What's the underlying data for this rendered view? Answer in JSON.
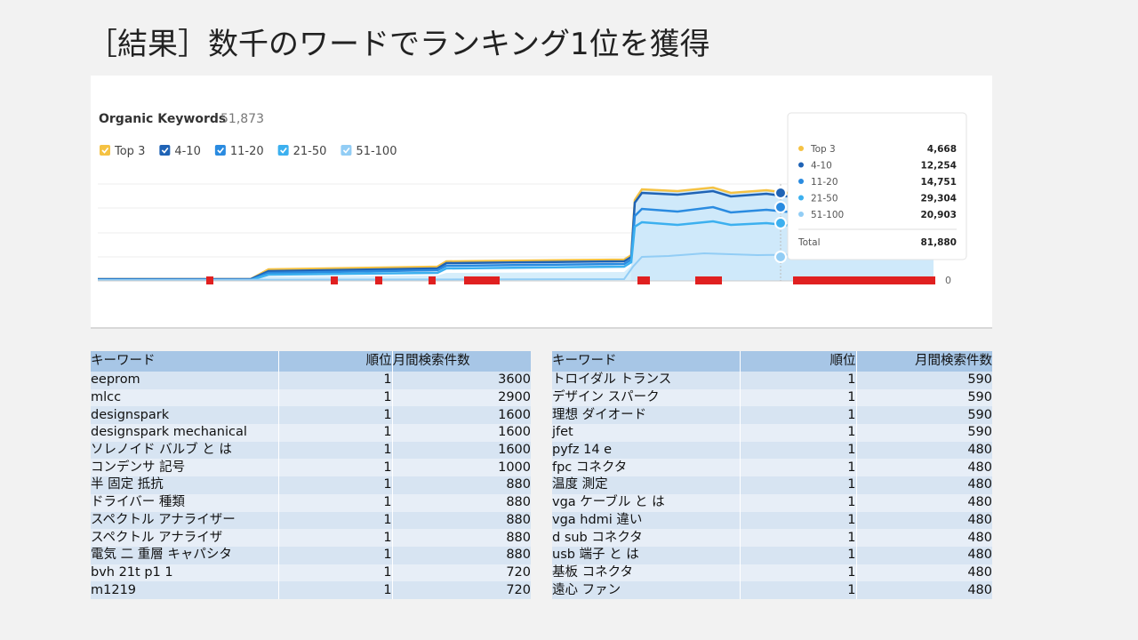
{
  "title": "［結果］数千のワードでランキング1位を獲得",
  "chart": {
    "title": "Organic Keywords",
    "count": "51,873",
    "legend": [
      "Top 3",
      "4-10",
      "11-20",
      "21-50",
      "51-100"
    ],
    "axis_label": "0",
    "tooltip": {
      "rows": [
        [
          "Top 3",
          "4,668"
        ],
        [
          "4-10",
          "12,254"
        ],
        [
          "11-20",
          "14,751"
        ],
        [
          "21-50",
          "29,304"
        ],
        [
          "51-100",
          "20,903"
        ]
      ],
      "total_label": "Total",
      "total": "81,880"
    }
  },
  "tables": [
    {
      "header": [
        "キーワード",
        "順位",
        "月間検索件数"
      ],
      "rows": [
        [
          "eeprom",
          1,
          3600
        ],
        [
          "mlcc",
          1,
          2900
        ],
        [
          "designspark",
          1,
          1600
        ],
        [
          "designspark mechanical",
          1,
          1600
        ],
        [
          "ソレノイド バルブ と は",
          1,
          1600
        ],
        [
          "コンデンサ 記号",
          1,
          1000
        ],
        [
          "半 固定 抵抗",
          1,
          880
        ],
        [
          "ドライバー 種類",
          1,
          880
        ],
        [
          "スペクトル アナライザー",
          1,
          880
        ],
        [
          "スペクトル アナライザ",
          1,
          880
        ],
        [
          "電気 二 重層 キャパシタ",
          1,
          880
        ],
        [
          "bvh 21t p1 1",
          1,
          720
        ],
        [
          "m1219",
          1,
          720
        ]
      ]
    },
    {
      "header": [
        "キーワード",
        "順位",
        "月間検索件数"
      ],
      "rows": [
        [
          "トロイダル トランス",
          1,
          590
        ],
        [
          "デザイン スパーク",
          1,
          590
        ],
        [
          "理想 ダイオード",
          1,
          590
        ],
        [
          "jfet",
          1,
          590
        ],
        [
          "pyfz 14 e",
          1,
          480
        ],
        [
          "fpc コネクタ",
          1,
          480
        ],
        [
          "温度 測定",
          1,
          480
        ],
        [
          "vga ケーブル と は",
          1,
          480
        ],
        [
          "vga hdmi 違い",
          1,
          480
        ],
        [
          "d sub コネクタ",
          1,
          480
        ],
        [
          "usb 端子 と は",
          1,
          480
        ],
        [
          "基板 コネクタ",
          1,
          480
        ],
        [
          "遠心 ファン",
          1,
          480
        ]
      ]
    }
  ]
}
